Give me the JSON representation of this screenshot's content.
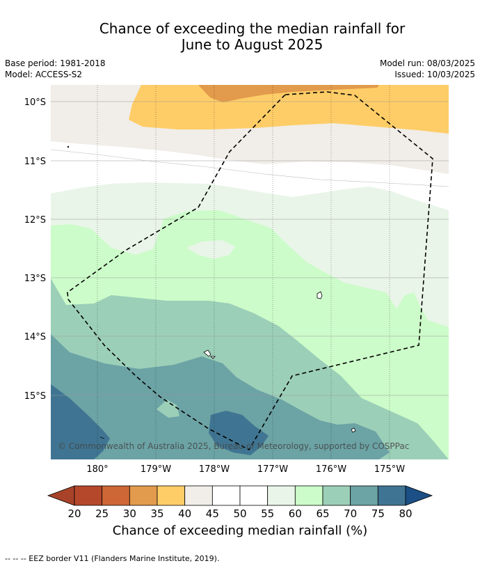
{
  "title": {
    "line1": "Chance of exceeding the median rainfall for",
    "line2": "June to August 2025"
  },
  "meta": {
    "base_period": "Base period: 1981-2018",
    "model": "Model: ACCESS-S2",
    "model_run": "Model run: 08/03/2025",
    "issued": "Issued: 10/03/2025"
  },
  "map": {
    "lat_labels": [
      "10°S",
      "11°S",
      "12°S",
      "13°S",
      "14°S",
      "15°S"
    ],
    "lon_labels": [
      "180°",
      "179°W",
      "178°W",
      "177°W",
      "176°W",
      "175°W"
    ],
    "copyright": "© Commonwealth of Australia 2025, Bureau of Meteorology, supported by COSPPac"
  },
  "colorbar": {
    "label": "Chance of exceeding median rainfall (%)",
    "ticks": [
      "20",
      "25",
      "30",
      "35",
      "40",
      "45",
      "50",
      "55",
      "60",
      "65",
      "70",
      "75",
      "80"
    ],
    "colors": [
      "#a8432a",
      "#b5482b",
      "#cd6736",
      "#e29a4c",
      "#fecd67",
      "#f1ede8",
      "#ffffff",
      "#ffffff",
      "#e9f5e8",
      "#ccfcc9",
      "#9ccfb8",
      "#6ca3a5",
      "#3f7592",
      "#1b4f85"
    ]
  },
  "footnote": "--  --  -- EEZ border V11 (Flanders Marine Institute, 2019)."
}
